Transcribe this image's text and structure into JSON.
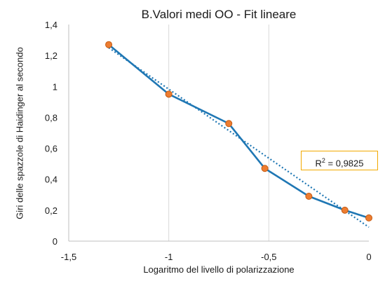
{
  "chart_data": {
    "type": "line",
    "title": "B.Valori medi OO - Fit lineare",
    "xlabel": "Logaritmo del livello di polarizzazione",
    "ylabel": "Giri delle spazzole di Haidinger al secondo",
    "xlim": [
      -1.5,
      0
    ],
    "ylim": [
      0,
      1.4
    ],
    "x_ticks": [
      "-1,5",
      "-1",
      "-0,5",
      "0"
    ],
    "y_ticks": [
      "0",
      "0,2",
      "0,4",
      "0,6",
      "0,8",
      "1",
      "1,2",
      "1,4"
    ],
    "grid": "vertical",
    "series": [
      {
        "x": [
          -1.3,
          -1.0,
          -0.7,
          -0.52,
          -0.3,
          -0.12,
          0.0
        ],
        "y": [
          1.27,
          0.95,
          0.76,
          0.47,
          0.29,
          0.2,
          0.15
        ],
        "line_color": "#1f77b4",
        "marker_color": "#ed7d31"
      }
    ],
    "trendline": {
      "type": "linear",
      "x": [
        -1.3,
        0.0
      ],
      "y": [
        1.25,
        0.09
      ],
      "color": "#1f77b4",
      "style": "dotted"
    },
    "annotation": {
      "r2_label": "R",
      "r2_exp": "2",
      "r2_value": " = 0,9825",
      "border_color": "#f2a900"
    }
  }
}
